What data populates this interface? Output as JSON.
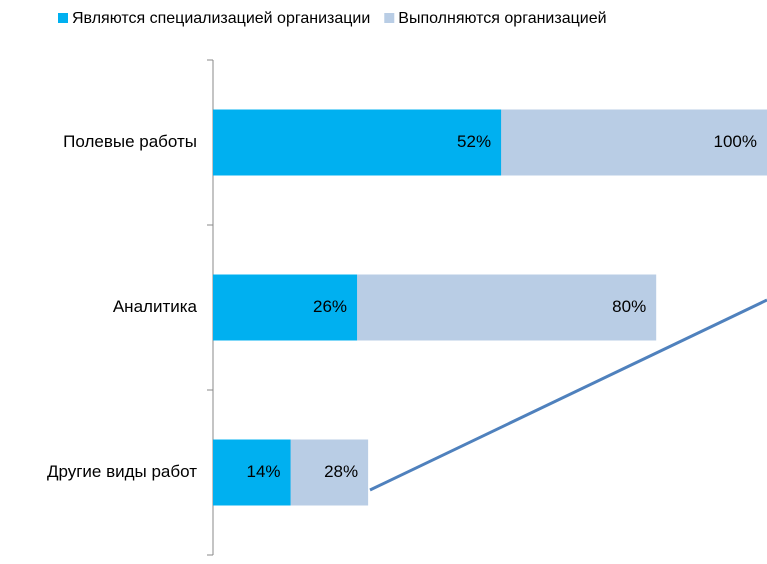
{
  "chart_data": {
    "type": "bar",
    "orientation": "horizontal",
    "overlap": true,
    "categories": [
      "Полевые работы",
      "Аналитика",
      "Другие виды работ"
    ],
    "series": [
      {
        "name": "Являются специализацией организации",
        "color": "#00b0f0",
        "values": [
          52,
          26,
          14
        ],
        "value_labels": [
          "52%",
          "26%",
          "14%"
        ]
      },
      {
        "name": "Выполняются организацией",
        "color": "#b9cde5",
        "values": [
          100,
          80,
          28
        ],
        "value_labels": [
          "100%",
          "80%",
          "28%"
        ]
      }
    ],
    "xlim": [
      0,
      100
    ],
    "legend": "top"
  }
}
